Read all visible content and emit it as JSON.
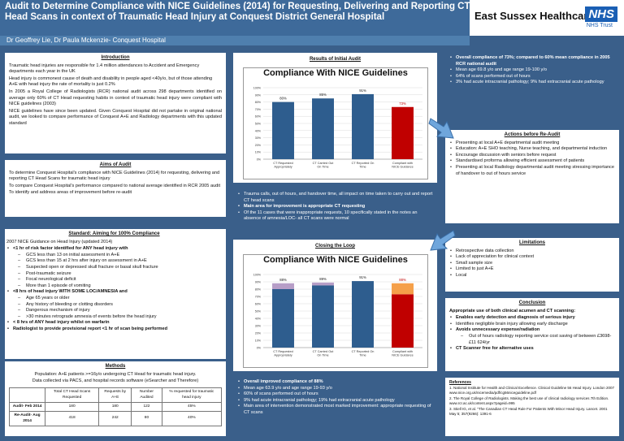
{
  "header": {
    "title": "Audit to Determine Compliance with NICE Guidelines (2014) for Requesting, Delivering and Reporting CT Head Scans in context of Traumatic Head Injury at Conquest District General Hospital",
    "org_name": "East Sussex Healthcare",
    "nhs_logo": "NHS",
    "nhs_trust": "NHS Trust",
    "authors": "Dr Geoffrey Lie, Dr Paula Mckenzie- Conquest Hospital"
  },
  "introduction": {
    "title": "Introduction",
    "paragraphs": [
      "Traumatic head injuries are responsible for 1.4 million attendances to Accident and Emergency departments each year in the UK",
      "Head injury is commonest cause of death and disability in people aged <40y/o, but of those attending A+E with head injury the rate of mortality is just 0.2%",
      "In 2005 a Royal College of Radiologists (RCR) national audit across 298 departments identified on average only 60% of CT Head requesting habits in context of traumatic head injury were compliant with NICE guidelines (2003)",
      "NICE guidelines have since been updated. Given Conquest Hospital did not partake in original national audit, we looked to compare performance of Conquest A+E and Radiology departments with this updated standard"
    ]
  },
  "aims": {
    "title": "Aims of Audit",
    "paragraphs": [
      "To determine Conquest Hospital's compliance with NICE Guidelines (2014) for requesting, delivering and reporting CT Head Scans for traumatic head injury",
      "To compare Conquest Hospital's performance compared to national average identified in RCR 2005 audit",
      "To identify and address areas of improvement before re-audit"
    ]
  },
  "standard": {
    "title": "Standard: Aiming for 100% Compliance",
    "intro": "2007 NICE Guidance on Head Injury (updated 2014)",
    "items": [
      {
        "t": "<1 hr of risk factor identified for ANY head injury with",
        "lvl": 1,
        "b": true
      },
      {
        "t": "GCS less than 13 on initial assessment in A+E",
        "lvl": 2
      },
      {
        "t": "GCS less than 15 at 2 hrs after injury on assessment in A+E",
        "lvl": 2
      },
      {
        "t": "Suspected open or depressed skull fracture or basal skull fracture",
        "lvl": 2
      },
      {
        "t": "Post-traumatic seizure",
        "lvl": 2
      },
      {
        "t": "Focal neurological deficit",
        "lvl": 2
      },
      {
        "t": "More than 1 episode of vomiting",
        "lvl": 2
      },
      {
        "t": "<8 hrs of head injury WITH SOME LOC/AMNESIA and",
        "lvl": 1,
        "b": true
      },
      {
        "t": "Age 65 years or older",
        "lvl": 2
      },
      {
        "t": "Any history of bleeding or clotting disorders",
        "lvl": 2
      },
      {
        "t": "Dangerous mechanism of injury",
        "lvl": 2
      },
      {
        "t": ">30 minutes retrograde amnesia of events before the head injury",
        "lvl": 2
      },
      {
        "t": "< 8 hrs of ANY head injury whilst on warfarin",
        "lvl": 1,
        "b": true
      },
      {
        "t": "Radiologist to provide provisional report <1 hr of scan being performed",
        "lvl": 1,
        "b": true
      }
    ]
  },
  "methods": {
    "title": "Methods",
    "paragraphs": [
      "Population: A+E patients >=16y/o undergoing CT Head for traumatic head injury.",
      "Data collected via PACS, and hospital records software (eSearcher and Therefore)"
    ],
    "table": {
      "headers": [
        "",
        "Total CT Head Scans Requested",
        "Requests by A+E",
        "Number Audited",
        "% requested for traumatic head injury"
      ],
      "rows": [
        [
          "Audit- Feb 2014",
          "180",
          "180",
          "122",
          "45%"
        ],
        [
          "Re-Audit- Aug 2014",
          "418",
          "242",
          "80",
          "40%"
        ]
      ]
    }
  },
  "initial_results": {
    "title": "Results of Initial Audit",
    "bullets": [
      {
        "t": "Trauma calls, out of hours, and handover time, all impact on time taken to carry out and report CT head scans",
        "b": false
      },
      {
        "t": "Main area for improvement is appropriate CT requesting",
        "b": true
      },
      {
        "t": "Of the 11 cases that were inappropriate requests, 10 specifically stated in the notes an absence of amnesia/LOC- all CT scans were normal",
        "b": false
      }
    ]
  },
  "closing_loop": {
    "title": "Closing the Loop",
    "bullets": [
      {
        "t": "Overall improved compliance of 88%",
        "b": true
      },
      {
        "t": "Mean age 63.9 y/o and age range 19-93 y/o",
        "b": false
      },
      {
        "t": "60% of scans performed out of hours",
        "b": false
      },
      {
        "t": "9% had acute intracranial pathology; 19% had extracranial acute pathology",
        "b": false
      },
      {
        "t": "Main area of intervention demonstrated most marked improvement: appropriate requesting of CT scans",
        "b": false
      }
    ]
  },
  "summary": {
    "bullets": [
      {
        "t": "Overall compliance of 73%; compared to 60% mean compliance in 2005 RCR national audit",
        "b": true
      },
      {
        "t": "Mean age 69.8 y/o and age range 19-100 y/o",
        "b": false
      },
      {
        "t": "64% of scans performed out of hours",
        "b": false
      },
      {
        "t": "3% had acute intracranial pathology; 9% had extracranial acute pathology",
        "b": false
      }
    ]
  },
  "actions": {
    "title": "Actions before Re-Audit",
    "items": [
      {
        "t": "Presenting at local A+E departmental audit meeting",
        "lvl": 1
      },
      {
        "t": "Education: A+E SHO teaching, Nurse teaching, and departmental induction",
        "lvl": 1
      },
      {
        "t": "Encourage discussion with seniors before request",
        "lvl": 1
      },
      {
        "t": "Standardised proforma allowing efficient assessment of patients",
        "lvl": 1
      },
      {
        "t": "Presenting at local Radiology departmental audit meeting stressing importance of handover to out of hours service",
        "lvl": 1
      }
    ]
  },
  "limitations": {
    "title": "Limitations",
    "items": [
      "Retrospective data collection",
      "Lack of appreciation for clinical context",
      "Small sample size",
      "Limited to just A+E",
      "Local"
    ]
  },
  "conclusion": {
    "title": "Conclusion",
    "lead": "Appropriate use of both clinical acumen and CT scanning:",
    "items": [
      {
        "t": "Enables early detection and diagnosis of serious injury",
        "b": true,
        "lvl": 1
      },
      {
        "t": "Identifies negligible brain injury allowing early discharge",
        "b": false,
        "lvl": 1
      },
      {
        "t": "Avoids unnecessary expense/radiation",
        "b": true,
        "lvl": 1
      },
      {
        "t": "Out of hours radiology reporting service cost saving of between £3698- £11 624/yr",
        "b": false,
        "lvl": 2
      },
      {
        "t": "CT Scanner free for alternative uses",
        "b": true,
        "lvl": 1
      }
    ]
  },
  "references": {
    "title": "References",
    "items": [
      "1. National Institute for Health and Clinical Excellence. Clinical Guideline 56 Head Injury. London 2007 www.nice.org.uk/nicemedia/pdf/cg56niceguideline.pdf",
      "2. The Royal College of Radiologists. Making the best use of clinical radiology services 7th Edition. www.rcr.ac.uk/content.aspx?pageid=995",
      "3. Stiell IG, et al. \"The Canadian CT Head Rule For Patients With Minor Head Injury. Lancet. 2001 May 5; 357(9266): 1391-6"
    ]
  },
  "chart_data": [
    {
      "type": "bar",
      "title": "Compliance With NICE Guidelines",
      "categories": [
        "CT Requested Appropriately",
        "CT Carried Out On Time",
        "CT Reported On Time",
        "Compliant with NICE Guidance"
      ],
      "values": [
        80,
        85,
        91,
        73
      ],
      "labels": [
        "80%",
        "85%",
        "91%",
        "73%"
      ],
      "colors": [
        "#2e5d8e",
        "#2e5d8e",
        "#2e5d8e",
        "#c00000"
      ],
      "label_colors": [
        "#111111",
        "#111111",
        "#111111",
        "#c00000"
      ],
      "ylim": [
        0,
        100
      ],
      "yticks": [
        "0%",
        "10%",
        "20%",
        "30%",
        "40%",
        "50%",
        "60%",
        "70%",
        "80%",
        "90%",
        "100%"
      ],
      "grid": true
    },
    {
      "type": "bar",
      "title": "Compliance With NICE Guidelines",
      "categories": [
        "CT Requested Appropriately",
        "CT Carried Out On Time",
        "CT Reported On Time",
        "Compliant with NICE Guidance"
      ],
      "values": [
        88,
        89,
        91,
        88
      ],
      "previous_values": [
        80,
        85,
        91,
        73
      ],
      "labels": [
        "88%",
        "89%",
        "91%",
        "88%"
      ],
      "colors": [
        "#2e5d8e",
        "#2e5d8e",
        "#2e5d8e",
        "#c00000"
      ],
      "increase_colors": [
        "#b79ec7",
        "#b79ec7",
        "#b79ec7",
        "#f5a04a"
      ],
      "label_colors": [
        "#111111",
        "#111111",
        "#111111",
        "#c00000"
      ],
      "ylim": [
        0,
        100
      ],
      "yticks": [
        "0%",
        "10%",
        "20%",
        "30%",
        "40%",
        "50%",
        "60%",
        "70%",
        "80%",
        "90%",
        "100%"
      ],
      "grid": true
    }
  ]
}
